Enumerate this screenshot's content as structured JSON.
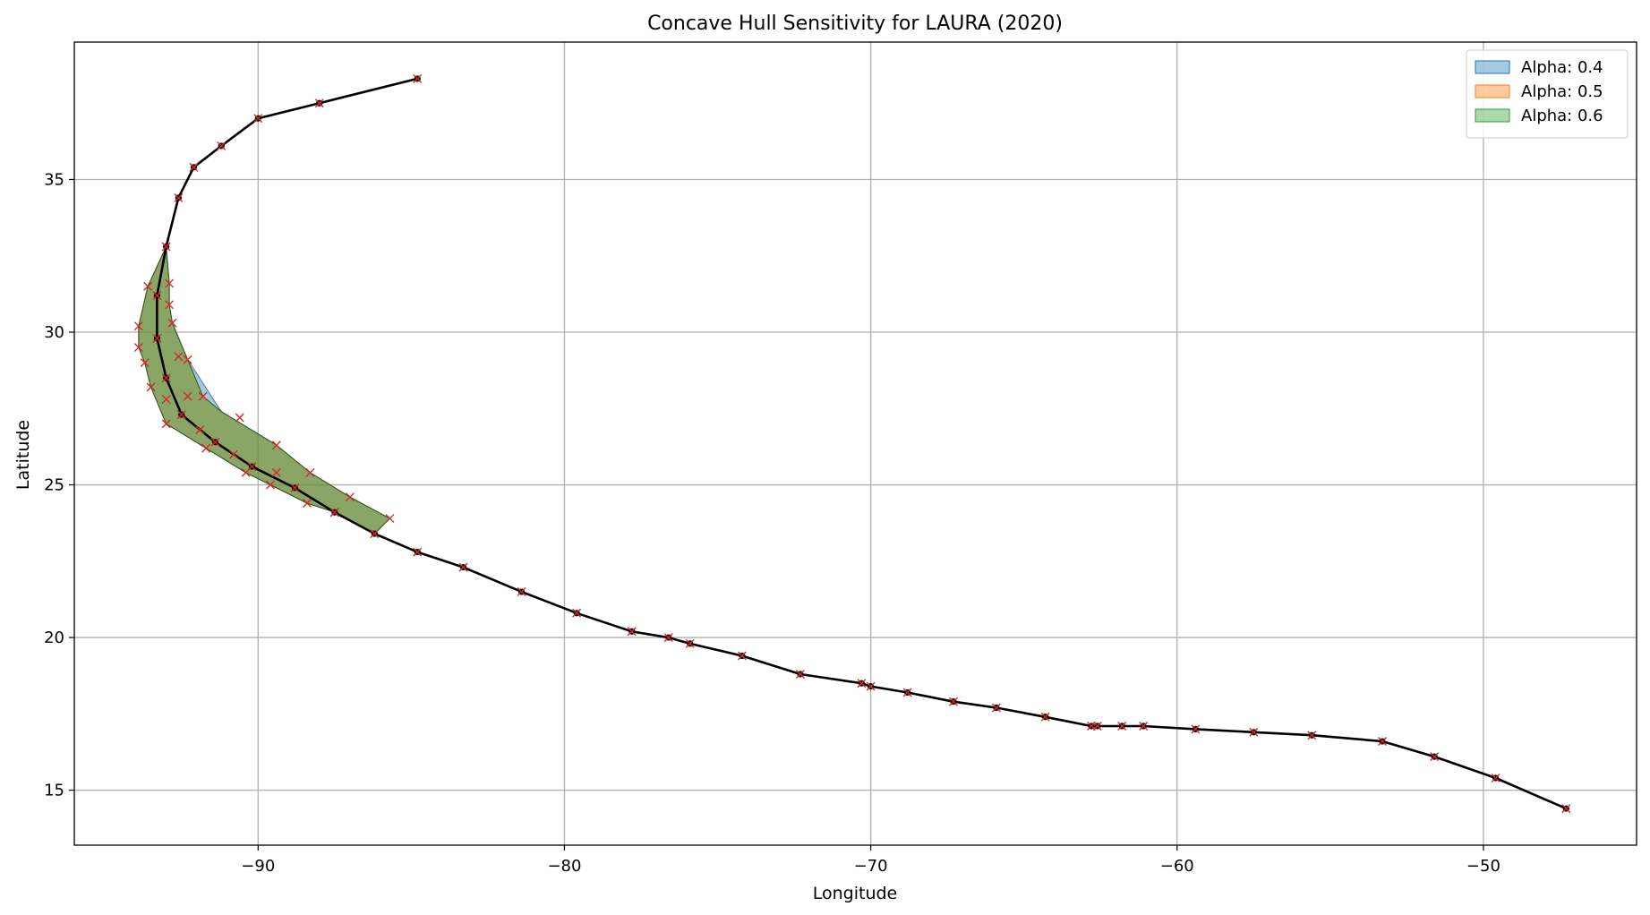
{
  "chart_data": {
    "type": "line",
    "title": "Concave Hull Sensitivity for LAURA (2020)",
    "xlabel": "Longitude",
    "ylabel": "Latitude",
    "xlim": [
      -96.0,
      -45.0
    ],
    "ylim": [
      13.2,
      39.5
    ],
    "x_ticks": [
      -90,
      -80,
      -70,
      -60,
      -50
    ],
    "y_ticks": [
      15,
      20,
      25,
      30,
      35
    ],
    "x_tick_labels": [
      "−90",
      "−80",
      "−70",
      "−60",
      "−50"
    ],
    "y_tick_labels": [
      "15",
      "20",
      "25",
      "30",
      "35"
    ],
    "grid": true,
    "legend_position": "top-right",
    "legend": [
      {
        "label": "Alpha: 0.4",
        "color": "#1f77b4"
      },
      {
        "label": "Alpha: 0.5",
        "color": "#ff7f0e"
      },
      {
        "label": "Alpha: 0.6",
        "color": "#2ca02c"
      }
    ],
    "track": [
      [
        -47.3,
        14.4
      ],
      [
        -49.6,
        15.4
      ],
      [
        -51.6,
        16.1
      ],
      [
        -53.3,
        16.6
      ],
      [
        -55.6,
        16.8
      ],
      [
        -57.5,
        16.9
      ],
      [
        -59.4,
        17.0
      ],
      [
        -61.1,
        17.1
      ],
      [
        -61.8,
        17.1
      ],
      [
        -62.6,
        17.1
      ],
      [
        -62.8,
        17.1
      ],
      [
        -64.3,
        17.4
      ],
      [
        -65.9,
        17.7
      ],
      [
        -67.3,
        17.9
      ],
      [
        -68.8,
        18.2
      ],
      [
        -70.0,
        18.4
      ],
      [
        -70.3,
        18.5
      ],
      [
        -72.3,
        18.8
      ],
      [
        -74.2,
        19.4
      ],
      [
        -75.9,
        19.8
      ],
      [
        -76.6,
        20.0
      ],
      [
        -77.8,
        20.2
      ],
      [
        -79.6,
        20.8
      ],
      [
        -81.4,
        21.5
      ],
      [
        -83.3,
        22.3
      ],
      [
        -84.8,
        22.8
      ],
      [
        -86.2,
        23.4
      ],
      [
        -87.5,
        24.1
      ],
      [
        -88.8,
        24.9
      ],
      [
        -90.2,
        25.6
      ],
      [
        -91.4,
        26.4
      ],
      [
        -92.5,
        27.3
      ],
      [
        -93.0,
        28.5
      ],
      [
        -93.3,
        29.8
      ],
      [
        -93.3,
        31.2
      ],
      [
        -93.0,
        32.8
      ],
      [
        -92.6,
        34.4
      ],
      [
        -92.1,
        35.4
      ],
      [
        -91.2,
        36.1
      ],
      [
        -90.0,
        37.0
      ],
      [
        -88.0,
        37.5
      ],
      [
        -84.8,
        38.3
      ]
    ],
    "hull_points": [
      [
        -85.7,
        23.9
      ],
      [
        -87.0,
        24.6
      ],
      [
        -88.3,
        25.4
      ],
      [
        -89.4,
        26.3
      ],
      [
        -90.6,
        27.2
      ],
      [
        -91.8,
        27.9
      ],
      [
        -92.3,
        29.1
      ],
      [
        -92.8,
        30.3
      ],
      [
        -92.9,
        30.9
      ],
      [
        -92.9,
        31.6
      ],
      [
        -93.6,
        31.5
      ],
      [
        -93.9,
        30.2
      ],
      [
        -93.9,
        29.5
      ],
      [
        -93.7,
        29.0
      ],
      [
        -93.5,
        28.2
      ],
      [
        -93.0,
        27.8
      ],
      [
        -93.0,
        27.0
      ],
      [
        -92.3,
        27.9
      ],
      [
        -91.9,
        26.8
      ],
      [
        -91.7,
        26.2
      ],
      [
        -90.4,
        25.4
      ],
      [
        -89.6,
        25.0
      ],
      [
        -88.4,
        24.4
      ],
      [
        -87.5,
        24.1
      ],
      [
        -92.6,
        29.2
      ],
      [
        -89.4,
        25.4
      ],
      [
        -90.8,
        26.0
      ]
    ],
    "hull_alpha_0_4": [
      [
        -93.0,
        32.8
      ],
      [
        -92.9,
        31.6
      ],
      [
        -92.9,
        30.9
      ],
      [
        -92.8,
        30.3
      ],
      [
        -92.3,
        29.1
      ],
      [
        -91.2,
        27.4
      ],
      [
        -89.4,
        26.3
      ],
      [
        -88.3,
        25.4
      ],
      [
        -87.0,
        24.6
      ],
      [
        -85.7,
        23.9
      ],
      [
        -86.2,
        23.4
      ],
      [
        -87.5,
        24.1
      ],
      [
        -88.4,
        24.4
      ],
      [
        -89.6,
        25.0
      ],
      [
        -90.4,
        25.4
      ],
      [
        -91.7,
        26.2
      ],
      [
        -93.0,
        27.0
      ],
      [
        -93.5,
        28.2
      ],
      [
        -93.7,
        29.0
      ],
      [
        -93.9,
        29.5
      ],
      [
        -93.9,
        30.2
      ],
      [
        -93.6,
        31.5
      ]
    ],
    "hull_alpha_0_6": [
      [
        -93.0,
        32.8
      ],
      [
        -92.9,
        31.6
      ],
      [
        -92.9,
        30.9
      ],
      [
        -92.8,
        30.3
      ],
      [
        -92.3,
        29.1
      ],
      [
        -91.8,
        27.9
      ],
      [
        -91.2,
        27.4
      ],
      [
        -89.4,
        26.3
      ],
      [
        -88.3,
        25.4
      ],
      [
        -87.0,
        24.6
      ],
      [
        -85.7,
        23.9
      ],
      [
        -86.2,
        23.4
      ],
      [
        -87.5,
        24.1
      ],
      [
        -88.4,
        24.4
      ],
      [
        -89.6,
        25.0
      ],
      [
        -90.4,
        25.4
      ],
      [
        -91.7,
        26.2
      ],
      [
        -93.0,
        27.0
      ],
      [
        -93.5,
        28.2
      ],
      [
        -93.7,
        29.0
      ],
      [
        -93.9,
        29.5
      ],
      [
        -93.9,
        30.2
      ],
      [
        -93.6,
        31.5
      ]
    ]
  }
}
